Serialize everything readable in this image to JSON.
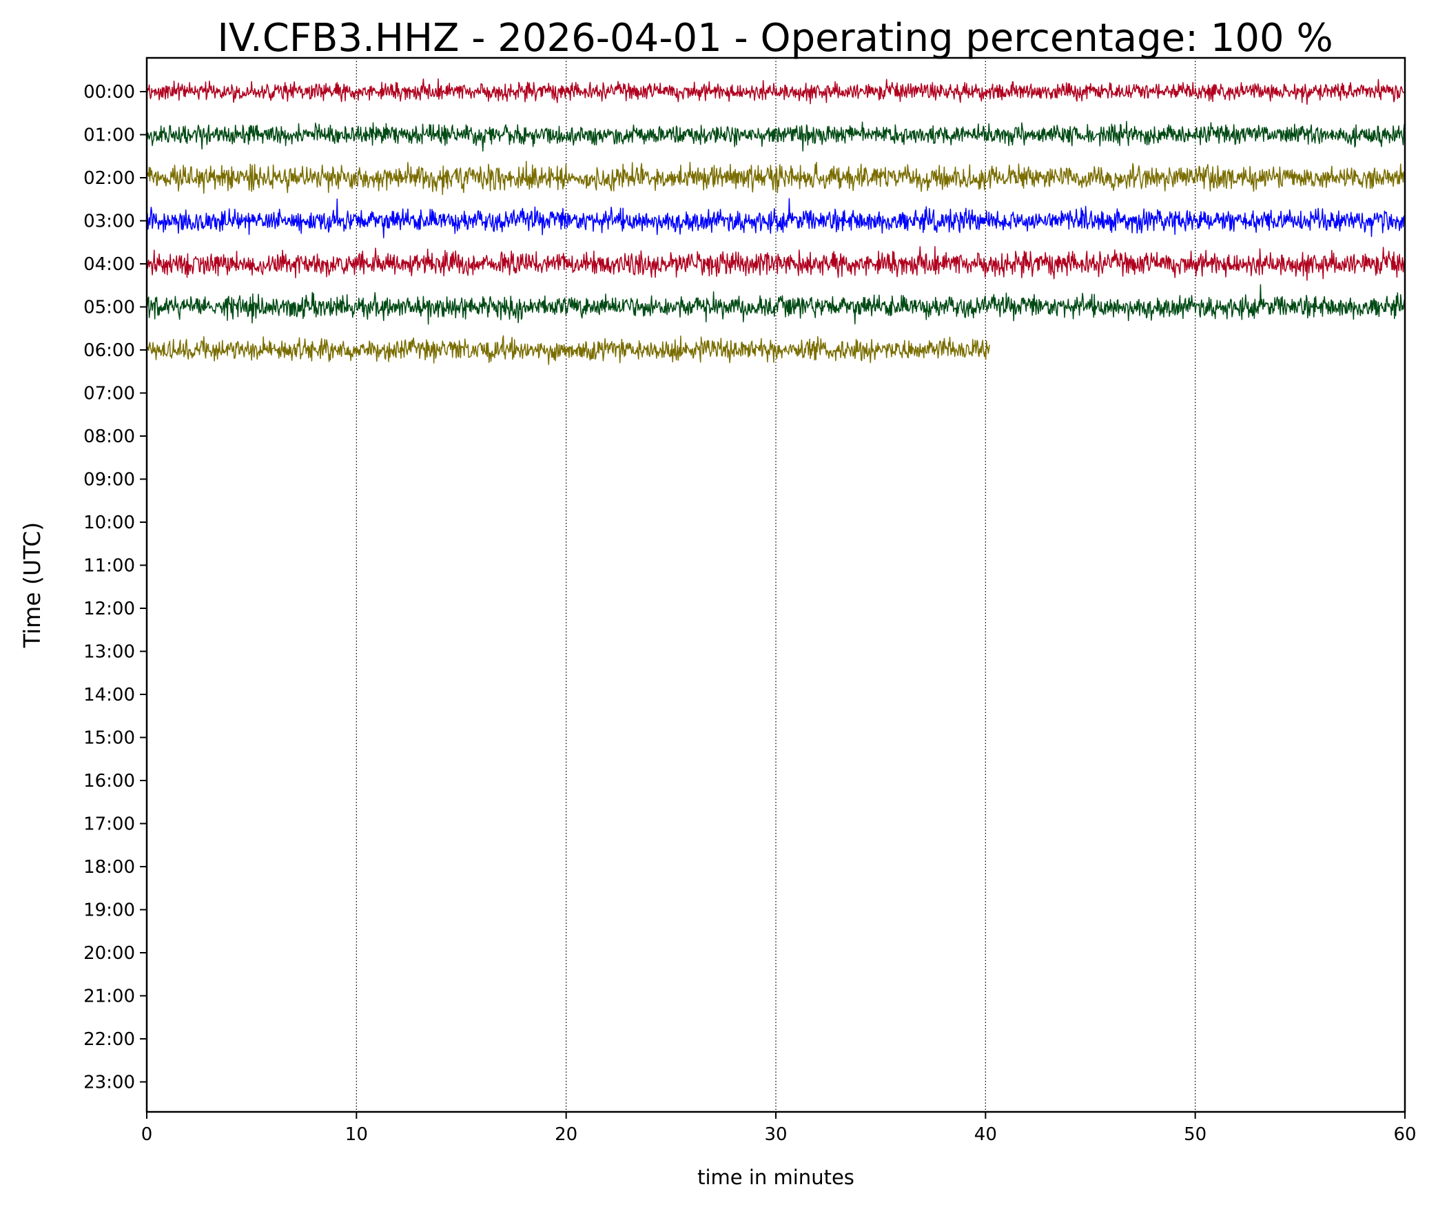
{
  "chart_data": {
    "type": "line",
    "title": "IV.CFB3.HHZ - 2026-04-01 - Operating percentage: 100 %",
    "xlabel": "time in minutes",
    "ylabel": "Time (UTC)",
    "xlim": [
      0,
      60
    ],
    "x_ticks": [
      "0",
      "10",
      "20",
      "30",
      "40",
      "50",
      "60"
    ],
    "y_ticks": [
      "00:00",
      "01:00",
      "02:00",
      "03:00",
      "04:00",
      "05:00",
      "06:00",
      "07:00",
      "08:00",
      "09:00",
      "10:00",
      "11:00",
      "12:00",
      "13:00",
      "14:00",
      "15:00",
      "16:00",
      "17:00",
      "18:00",
      "19:00",
      "20:00",
      "21:00",
      "22:00",
      "23:00"
    ],
    "grid": "vertical dotted",
    "series": [
      {
        "hour": "00:00",
        "color": "#b0001e",
        "x_start": 0,
        "x_end": 60,
        "amplitude": 0.28
      },
      {
        "hour": "01:00",
        "color": "#004a14",
        "x_start": 0,
        "x_end": 60,
        "amplitude": 0.32
      },
      {
        "hour": "02:00",
        "color": "#7a6d00",
        "x_start": 0,
        "x_end": 60,
        "amplitude": 0.38
      },
      {
        "hour": "03:00",
        "color": "#0000ff",
        "x_start": 0,
        "x_end": 60,
        "amplitude": 0.36
      },
      {
        "hour": "04:00",
        "color": "#b0001e",
        "x_start": 0,
        "x_end": 60,
        "amplitude": 0.38
      },
      {
        "hour": "05:00",
        "color": "#004a14",
        "x_start": 0,
        "x_end": 60,
        "amplitude": 0.36
      },
      {
        "hour": "06:00",
        "color": "#7a6d00",
        "x_start": 0,
        "x_end": 40.2,
        "amplitude": 0.36
      }
    ]
  }
}
